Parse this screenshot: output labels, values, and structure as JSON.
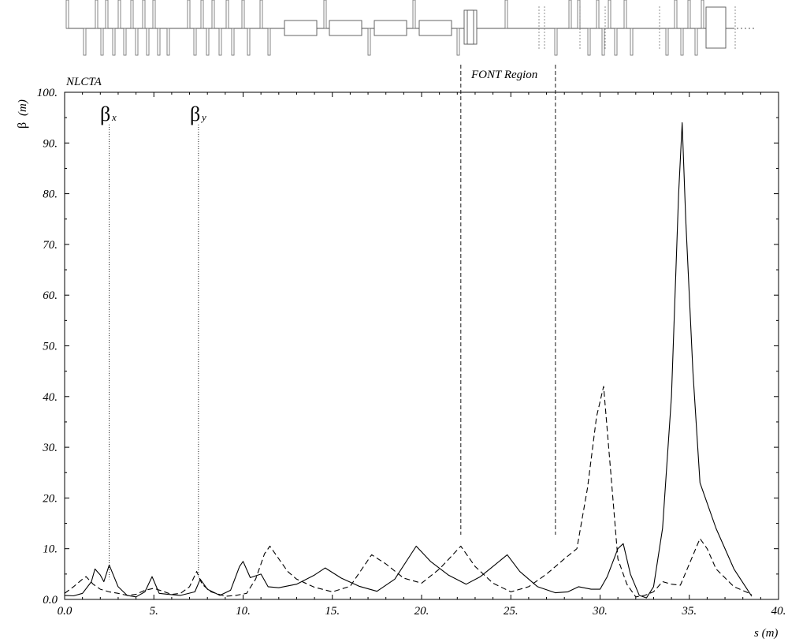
{
  "chart_data": {
    "type": "line",
    "title": "NLCTA",
    "region_label": "FONT Region",
    "region": [
      22.2,
      27.5
    ],
    "xlabel": "s (m)",
    "ylabel_symbol": "β",
    "ylabel_unit": "(m)",
    "xlim": [
      0,
      40
    ],
    "ylim": [
      0,
      100
    ],
    "x_ticks": [
      "0.0",
      "5.",
      "10.",
      "15.",
      "20.",
      "25.",
      "30.",
      "35.",
      "40."
    ],
    "y_ticks": [
      "0.0",
      "10.",
      "20.",
      "30.",
      "40.",
      "50.",
      "60.",
      "70.",
      "80.",
      "90.",
      "100."
    ],
    "legend": [
      {
        "symbol": "β",
        "subscript": "x",
        "marker_s": 2.5,
        "style": "solid"
      },
      {
        "symbol": "β",
        "subscript": "y",
        "marker_s": 7.5,
        "style": "dashed"
      }
    ],
    "series": [
      {
        "name": "βx",
        "style": "solid",
        "x": [
          0.0,
          0.5,
          1.0,
          1.5,
          1.7,
          2.0,
          2.2,
          2.5,
          3.0,
          3.5,
          4.0,
          4.5,
          4.9,
          5.3,
          5.8,
          6.5,
          7.3,
          7.6,
          8.0,
          8.7,
          9.3,
          9.8,
          10.0,
          10.4,
          11.0,
          11.4,
          12.0,
          13.0,
          14.0,
          14.6,
          15.5,
          16.5,
          17.5,
          18.5,
          19.7,
          20.5,
          21.5,
          22.5,
          23.3,
          24.0,
          24.8,
          25.5,
          26.5,
          27.5,
          28.2,
          28.8,
          29.5,
          30.0,
          30.4,
          31.0,
          31.3,
          31.7,
          32.2,
          32.6,
          33.0,
          33.5,
          34.0,
          34.4,
          34.6,
          34.8,
          35.2,
          35.6,
          36.5,
          37.5,
          38.5
        ],
        "y": [
          0.8,
          0.7,
          1.2,
          3.5,
          6.0,
          4.8,
          3.5,
          6.8,
          2.5,
          0.8,
          0.5,
          1.5,
          4.5,
          1.2,
          1.0,
          0.8,
          1.5,
          4.0,
          2.0,
          0.8,
          1.8,
          6.5,
          7.5,
          4.3,
          5.0,
          2.5,
          2.3,
          3.0,
          4.8,
          6.2,
          4.2,
          2.6,
          1.6,
          4.0,
          10.5,
          7.5,
          4.8,
          3.0,
          4.5,
          6.5,
          8.8,
          5.5,
          2.5,
          1.3,
          1.5,
          2.5,
          2.0,
          2.0,
          4.5,
          10.0,
          11.0,
          5.0,
          0.8,
          0.3,
          2.5,
          14.0,
          40.0,
          80.0,
          94.0,
          75.0,
          45.0,
          23.0,
          14.0,
          6.0,
          0.6
        ]
      },
      {
        "name": "βy",
        "style": "dashed",
        "x": [
          0.0,
          0.5,
          1.0,
          1.2,
          1.6,
          2.0,
          2.5,
          3.0,
          3.5,
          4.0,
          4.5,
          5.0,
          5.5,
          6.0,
          6.5,
          7.0,
          7.4,
          7.7,
          8.2,
          9.0,
          9.6,
          10.2,
          10.7,
          11.2,
          11.5,
          12.0,
          12.5,
          13.0,
          14.0,
          15.0,
          16.0,
          17.2,
          18.0,
          19.0,
          20.0,
          21.0,
          22.2,
          23.0,
          24.0,
          25.0,
          26.0,
          27.0,
          28.0,
          28.7,
          29.3,
          29.8,
          30.2,
          30.6,
          31.0,
          31.5,
          32.0,
          32.5,
          33.0,
          33.5,
          34.0,
          34.5,
          35.0,
          35.6,
          36.0,
          36.5,
          37.5,
          38.5
        ],
        "y": [
          1.2,
          2.5,
          4.0,
          4.5,
          3.0,
          2.0,
          1.5,
          1.2,
          0.8,
          1.0,
          1.8,
          2.2,
          1.6,
          1.0,
          1.2,
          2.5,
          5.5,
          3.0,
          1.5,
          0.6,
          0.8,
          1.2,
          4.0,
          9.0,
          10.5,
          8.0,
          5.5,
          4.0,
          2.4,
          1.5,
          2.6,
          8.8,
          7.0,
          4.2,
          3.2,
          6.0,
          10.5,
          6.5,
          3.2,
          1.5,
          2.5,
          5.0,
          8.0,
          10.0,
          22.0,
          36.0,
          42.0,
          25.0,
          8.0,
          3.0,
          0.5,
          0.8,
          1.5,
          3.5,
          3.0,
          2.8,
          7.0,
          12.0,
          10.0,
          6.0,
          2.5,
          1.0
        ]
      }
    ]
  }
}
